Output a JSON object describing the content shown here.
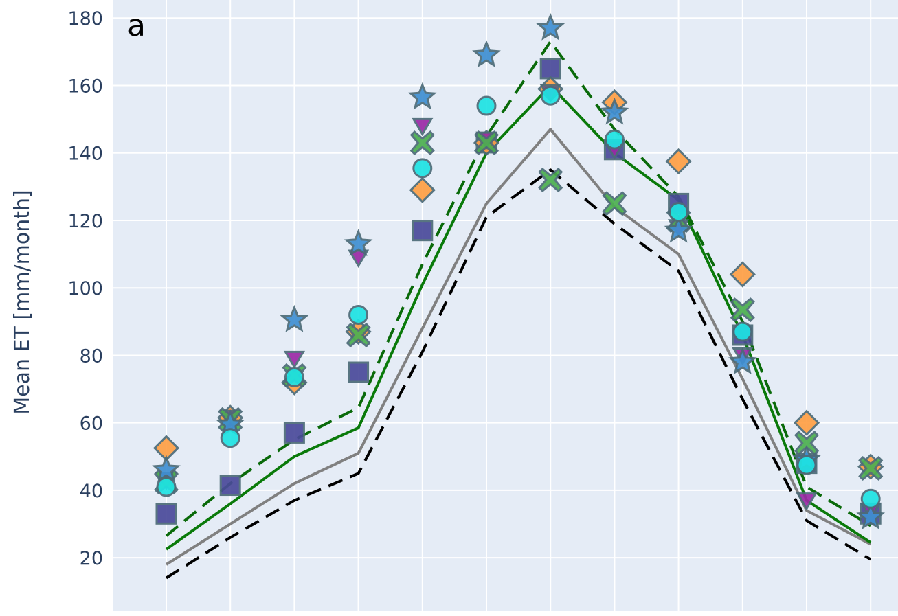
{
  "chart_data": {
    "type": "line",
    "panel_label": "a",
    "ylabel": "Mean ET [mm/month]",
    "xlabel": "",
    "ylim": [
      5,
      182
    ],
    "yticks": [
      20,
      40,
      60,
      80,
      100,
      120,
      140,
      160,
      180
    ],
    "x": [
      1,
      2,
      3,
      4,
      5,
      6,
      7,
      8,
      9,
      10,
      11,
      12
    ],
    "grid": true,
    "legend": "none",
    "colors": {
      "background": "#e5ecf6",
      "grid": "#ffffff",
      "text": "#2a3f5f"
    },
    "line_series": [
      {
        "values": [
          18,
          30,
          42,
          51,
          88,
          125,
          147,
          124,
          110,
          73,
          34,
          24
        ],
        "color": "#808080",
        "dash": "solid"
      },
      {
        "values": [
          22.5,
          36,
          50,
          58.5,
          101,
          140,
          160,
          140,
          126,
          86,
          37,
          24.5
        ],
        "color": "#0a7a0a",
        "dash": "solid"
      },
      {
        "values": [
          26.5,
          42,
          55,
          64.5,
          107,
          145,
          173,
          147,
          127,
          90,
          41,
          29.5
        ],
        "color": "#0a6a0a",
        "dash": "dash"
      },
      {
        "values": [
          14,
          26,
          37,
          45,
          81,
          121,
          135,
          119,
          105,
          67,
          31,
          19.5
        ],
        "color": "#000000",
        "dash": "dash"
      }
    ],
    "marker_series": [
      {
        "symbol": "square",
        "fill": "#4a4a9a",
        "values": [
          33,
          41.5,
          57,
          75,
          117,
          143,
          165,
          141,
          125,
          86,
          48,
          33
        ]
      },
      {
        "symbol": "diamond",
        "fill": "#ff9f45",
        "values": [
          52.5,
          61.5,
          72,
          87,
          129,
          143,
          159,
          155,
          137.5,
          104,
          60,
          47
        ]
      },
      {
        "symbol": "triangle-down",
        "fill": "#9b2aa6",
        "values": [
          43,
          61.5,
          79,
          109,
          148,
          144,
          158,
          141,
          118,
          80,
          37,
          34
        ]
      },
      {
        "symbol": "x",
        "fill": "#4caf50",
        "values": [
          42.5,
          61,
          74,
          86,
          143,
          143,
          132,
          125,
          120,
          93.5,
          54,
          46.5
        ]
      },
      {
        "symbol": "star",
        "fill": "#3f8fd2",
        "values": [
          46,
          59.5,
          90.5,
          113,
          156.5,
          169,
          177,
          152,
          117,
          78,
          49,
          32
        ]
      },
      {
        "symbol": "circle",
        "fill": "#1ee3e3",
        "values": [
          41,
          55.5,
          73.5,
          92,
          135.5,
          154,
          157,
          144,
          122.5,
          87,
          47.5,
          37.5
        ]
      }
    ]
  }
}
